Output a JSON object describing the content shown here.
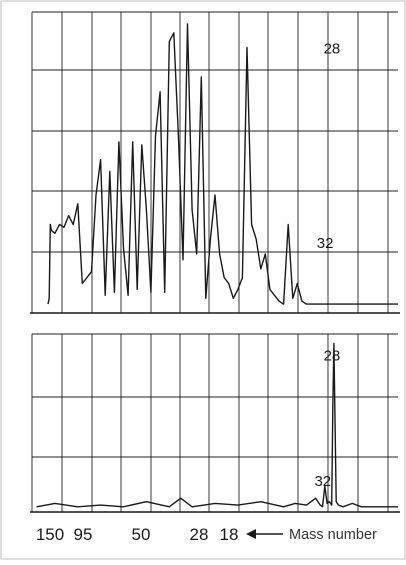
{
  "colors": {
    "ink": "#1a1a1a",
    "grid": "#222222",
    "background": "#ffffff"
  },
  "chart_data": [
    {
      "type": "line",
      "panel": "top",
      "title": "",
      "xlabel": "",
      "ylabel": "",
      "grid": true,
      "xlim": [
        160,
        0
      ],
      "ylim": [
        0,
        100
      ],
      "peak_labels": [
        {
          "text": "28",
          "x": 28,
          "y": 88
        },
        {
          "text": "32",
          "x": 31,
          "y": 22
        }
      ],
      "series": [
        {
          "x": [
            153,
            152.5,
            152,
            151.5,
            150,
            148,
            146,
            144,
            142,
            140,
            138,
            136,
            134,
            132,
            130,
            128,
            126,
            124,
            122,
            120,
            118,
            116,
            114,
            112,
            110,
            108,
            106,
            104,
            102,
            100,
            98,
            96,
            94,
            92,
            90,
            88,
            86,
            84,
            82,
            80,
            78,
            76,
            74,
            72,
            70,
            68,
            66,
            64,
            62,
            60,
            58,
            56,
            54,
            52,
            50,
            48,
            46,
            44,
            42,
            40,
            38,
            36,
            34,
            32,
            31,
            30,
            29,
            28,
            27,
            26,
            25,
            24,
            22,
            20,
            18,
            17,
            16,
            15,
            14,
            12,
            10,
            8,
            6,
            4,
            2,
            0
          ],
          "y": [
            3,
            5,
            30,
            28,
            27,
            30,
            29,
            33,
            30,
            37,
            10,
            12,
            14,
            40,
            52,
            6,
            48,
            7,
            58,
            22,
            6,
            58,
            8,
            57,
            35,
            7,
            60,
            75,
            7,
            92,
            95,
            60,
            18,
            98,
            35,
            20,
            80,
            5,
            25,
            40,
            20,
            12,
            10,
            5,
            8,
            12,
            90,
            30,
            25,
            15,
            20,
            8,
            6,
            4,
            3,
            30,
            5,
            10,
            4,
            3,
            3,
            3,
            3,
            3,
            3,
            3,
            3,
            3,
            3,
            3,
            3,
            3,
            3,
            3,
            3,
            3,
            3,
            3,
            3,
            3,
            3,
            3,
            3,
            3,
            3,
            3
          ]
        }
      ]
    },
    {
      "type": "line",
      "panel": "bottom",
      "title": "",
      "xlabel": "Mass number",
      "ylabel": "",
      "grid": true,
      "xlim": [
        160,
        0
      ],
      "ylim": [
        0,
        100
      ],
      "x_ticks": [
        150,
        95,
        50,
        28,
        18
      ],
      "peak_labels": [
        {
          "text": "28",
          "x": 28,
          "y": 88
        },
        {
          "text": "32",
          "x": 32,
          "y": 15
        }
      ],
      "series": [
        {
          "x": [
            158,
            150,
            140,
            130,
            120,
            110,
            100,
            95,
            90,
            80,
            70,
            60,
            50,
            45,
            40,
            36,
            34,
            33,
            32,
            31,
            30,
            29,
            28.5,
            28,
            27.5,
            27,
            26,
            24,
            20,
            18,
            16,
            14,
            12,
            10,
            8,
            6,
            4,
            2,
            0
          ],
          "y": [
            3,
            5,
            3,
            4,
            3,
            6,
            3,
            8,
            3,
            5,
            4,
            6,
            3,
            5,
            4,
            8,
            4,
            3,
            15,
            5,
            6,
            4,
            60,
            98,
            50,
            6,
            4,
            3,
            5,
            4,
            3,
            3,
            3,
            3,
            3,
            3,
            3,
            3,
            3
          ]
        }
      ]
    }
  ]
}
